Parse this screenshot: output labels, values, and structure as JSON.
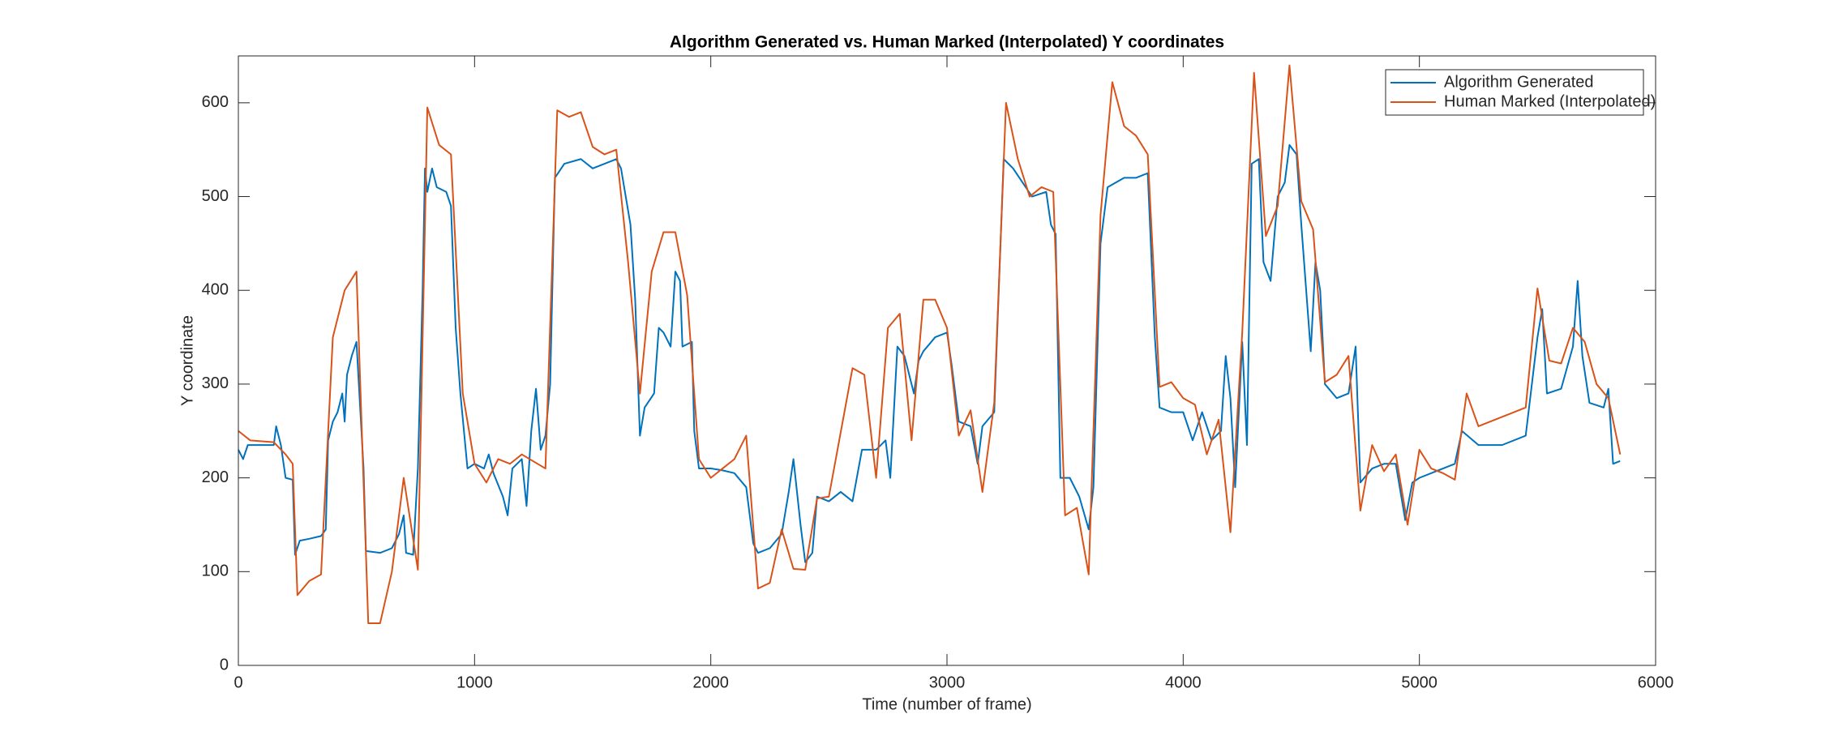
{
  "chart_data": {
    "type": "line",
    "title": "Algorithm Generated vs. Human Marked (Interpolated) Y coordinates",
    "x_label": "Time (number of frame)",
    "y_label": "Y coordinate",
    "xlim": [
      0,
      6000
    ],
    "xticks": [
      0,
      1000,
      2000,
      3000,
      4000,
      5000,
      6000
    ],
    "ylim": [
      0,
      650
    ],
    "yticks": [
      0,
      100,
      200,
      300,
      400,
      500,
      600
    ],
    "legend": "northeast",
    "grid": false,
    "series": [
      {
        "name": "Algorithm Generated",
        "color": "#0072BD",
        "x": [
          0,
          20,
          40,
          100,
          150,
          160,
          180,
          200,
          230,
          240,
          260,
          300,
          350,
          370,
          380,
          400,
          420,
          440,
          450,
          460,
          480,
          500,
          510,
          530,
          540,
          600,
          650,
          680,
          700,
          710,
          740,
          760,
          780,
          790,
          800,
          820,
          840,
          880,
          900,
          920,
          940,
          970,
          1000,
          1040,
          1060,
          1080,
          1120,
          1140,
          1160,
          1200,
          1220,
          1240,
          1260,
          1280,
          1300,
          1320,
          1340,
          1380,
          1450,
          1500,
          1550,
          1600,
          1620,
          1660,
          1680,
          1700,
          1720,
          1760,
          1780,
          1800,
          1830,
          1850,
          1870,
          1880,
          1920,
          1930,
          1950,
          2000,
          2050,
          2100,
          2150,
          2180,
          2200,
          2250,
          2300,
          2330,
          2350,
          2380,
          2400,
          2430,
          2450,
          2500,
          2550,
          2600,
          2640,
          2700,
          2740,
          2760,
          2790,
          2820,
          2860,
          2880,
          2900,
          2950,
          3000,
          3020,
          3050,
          3100,
          3130,
          3150,
          3200,
          3240,
          3280,
          3320,
          3360,
          3420,
          3440,
          3460,
          3480,
          3520,
          3560,
          3600,
          3620,
          3650,
          3680,
          3750,
          3800,
          3850,
          3880,
          3900,
          3950,
          4000,
          4040,
          4080,
          4120,
          4160,
          4180,
          4200,
          4220,
          4250,
          4270,
          4290,
          4320,
          4340,
          4370,
          4400,
          4430,
          4450,
          4480,
          4500,
          4540,
          4560,
          4580,
          4600,
          4650,
          4700,
          4730,
          4750,
          4800,
          4850,
          4900,
          4940,
          4970,
          5000,
          5100,
          5150,
          5180,
          5250,
          5350,
          5450,
          5500,
          5520,
          5540,
          5600,
          5650,
          5670,
          5690,
          5720,
          5780,
          5800,
          5820,
          5850
        ],
        "values": [
          230,
          220,
          235,
          235,
          235,
          255,
          235,
          200,
          198,
          118,
          133,
          135,
          138,
          145,
          240,
          260,
          270,
          290,
          260,
          310,
          330,
          345,
          300,
          210,
          122,
          120,
          125,
          140,
          160,
          120,
          118,
          210,
          400,
          530,
          505,
          530,
          510,
          505,
          490,
          360,
          290,
          210,
          215,
          210,
          225,
          205,
          180,
          160,
          210,
          220,
          170,
          250,
          295,
          230,
          245,
          300,
          520,
          535,
          540,
          530,
          535,
          540,
          530,
          470,
          390,
          245,
          275,
          290,
          360,
          355,
          340,
          420,
          410,
          340,
          345,
          250,
          210,
          210,
          208,
          205,
          190,
          130,
          120,
          125,
          140,
          185,
          220,
          150,
          110,
          120,
          180,
          175,
          185,
          175,
          230,
          230,
          240,
          200,
          340,
          330,
          290,
          325,
          335,
          350,
          355,
          320,
          260,
          255,
          215,
          255,
          270,
          540,
          530,
          515,
          500,
          505,
          470,
          460,
          200,
          200,
          180,
          145,
          190,
          450,
          510,
          520,
          520,
          525,
          350,
          275,
          270,
          270,
          240,
          270,
          240,
          250,
          330,
          285,
          190,
          345,
          235,
          535,
          540,
          430,
          410,
          500,
          515,
          555,
          545,
          470,
          335,
          430,
          400,
          300,
          285,
          290,
          340,
          195,
          210,
          215,
          215,
          155,
          195,
          200,
          210,
          215,
          250,
          235,
          235,
          245,
          350,
          380,
          290,
          295,
          340,
          410,
          330,
          280,
          275,
          295,
          215,
          218
        ]
      },
      {
        "name": "Human Marked (Interpolated)",
        "color": "#D95319",
        "x": [
          0,
          50,
          150,
          200,
          230,
          250,
          300,
          350,
          400,
          450,
          500,
          550,
          600,
          650,
          700,
          760,
          800,
          850,
          900,
          950,
          1000,
          1050,
          1100,
          1150,
          1200,
          1300,
          1350,
          1400,
          1450,
          1500,
          1550,
          1600,
          1650,
          1700,
          1750,
          1800,
          1850,
          1900,
          1950,
          2000,
          2100,
          2150,
          2200,
          2250,
          2300,
          2350,
          2400,
          2450,
          2500,
          2600,
          2650,
          2700,
          2750,
          2800,
          2850,
          2900,
          2950,
          3000,
          3050,
          3100,
          3150,
          3200,
          3250,
          3300,
          3350,
          3400,
          3450,
          3500,
          3550,
          3600,
          3650,
          3700,
          3750,
          3800,
          3850,
          3900,
          3950,
          4000,
          4050,
          4100,
          4150,
          4200,
          4250,
          4300,
          4350,
          4400,
          4450,
          4500,
          4550,
          4600,
          4650,
          4700,
          4750,
          4800,
          4850,
          4900,
          4950,
          5000,
          5050,
          5100,
          5150,
          5200,
          5250,
          5450,
          5500,
          5550,
          5600,
          5650,
          5700,
          5750,
          5800,
          5850
        ],
        "values": [
          250,
          240,
          238,
          225,
          215,
          75,
          90,
          97,
          350,
          400,
          420,
          45,
          45,
          100,
          200,
          102,
          595,
          555,
          545,
          290,
          215,
          195,
          220,
          215,
          225,
          210,
          592,
          585,
          590,
          553,
          545,
          550,
          430,
          290,
          420,
          462,
          462,
          395,
          220,
          200,
          220,
          245,
          82,
          88,
          145,
          103,
          102,
          178,
          180,
          317,
          310,
          200,
          360,
          375,
          240,
          390,
          390,
          360,
          245,
          272,
          185,
          280,
          600,
          540,
          500,
          510,
          505,
          160,
          168,
          97,
          480,
          622,
          575,
          565,
          545,
          297,
          302,
          285,
          278,
          225,
          262,
          142,
          355,
          632,
          458,
          490,
          640,
          495,
          465,
          302,
          310,
          330,
          165,
          235,
          207,
          225,
          150,
          230,
          210,
          205,
          198,
          290,
          255,
          275,
          402,
          325,
          322,
          360,
          345,
          300,
          285,
          225
        ]
      }
    ]
  }
}
